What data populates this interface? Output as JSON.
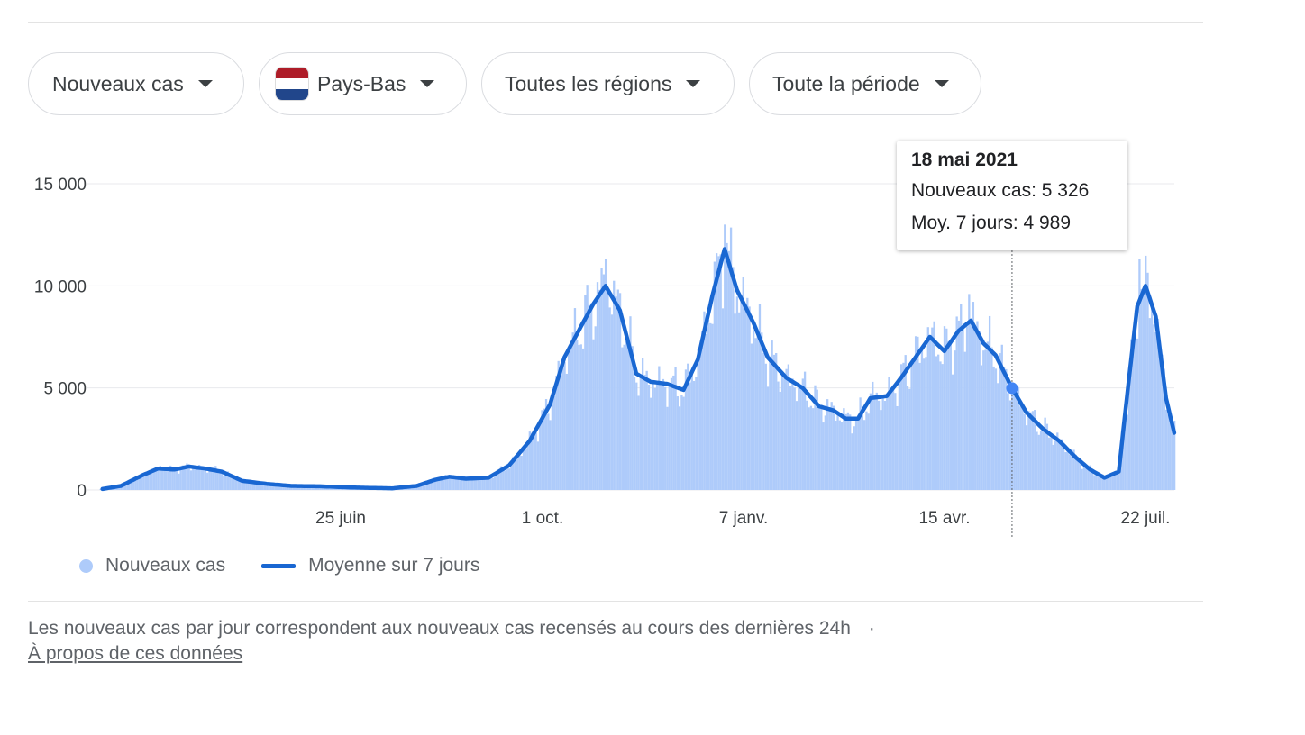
{
  "filters": {
    "metric": "Nouveaux cas",
    "country": "Pays-Bas",
    "region": "Toutes les régions",
    "period": "Toute la période"
  },
  "flag_colors": [
    "#ae1c28",
    "#ffffff",
    "#21468b"
  ],
  "colors": {
    "bars": "#aecbfa",
    "line": "#1967d2",
    "grid": "#e8eaed"
  },
  "tooltip": {
    "date": "18 mai 2021",
    "new_cases": "Nouveaux cas: 5 326",
    "avg": "Moy. 7 jours: 4 989"
  },
  "legend": {
    "bars": "Nouveaux cas",
    "line": "Moyenne sur 7 jours"
  },
  "footer": {
    "note": "Les nouveaux cas par jour correspondent aux nouveaux cas recensés au cours des dernières 24h",
    "separator": "·",
    "about_link": "À propos de ces données"
  },
  "chart_data": {
    "type": "bar",
    "y_ticks": [
      "15 000",
      "10 000",
      "5 000",
      "0"
    ],
    "y_tick_values": [
      15000,
      10000,
      5000,
      0
    ],
    "ylim": [
      0,
      15000
    ],
    "x_tick_labels": [
      "25 juin",
      "1 oct.",
      "7 janv.",
      "15 avr.",
      "22 juil."
    ],
    "x_tick_dates": [
      "2020-06-25",
      "2020-10-01",
      "2021-01-07",
      "2021-04-15",
      "2021-07-22"
    ],
    "xlim": [
      "2020-03-01",
      "2021-08-05"
    ],
    "grid": true,
    "legend_position": "bottom-left",
    "highlight": {
      "date": "2021-05-18",
      "new_cases": 5326,
      "avg": 4989
    },
    "series": [
      {
        "name": "Moyenne sur 7 jours",
        "kind": "line",
        "points": [
          [
            "2020-03-01",
            50
          ],
          [
            "2020-03-10",
            200
          ],
          [
            "2020-03-20",
            700
          ],
          [
            "2020-03-28",
            1050
          ],
          [
            "2020-04-05",
            1000
          ],
          [
            "2020-04-12",
            1150
          ],
          [
            "2020-04-20",
            1050
          ],
          [
            "2020-04-28",
            900
          ],
          [
            "2020-05-08",
            450
          ],
          [
            "2020-05-20",
            300
          ],
          [
            "2020-06-01",
            200
          ],
          [
            "2020-06-15",
            180
          ],
          [
            "2020-07-01",
            120
          ],
          [
            "2020-07-20",
            80
          ],
          [
            "2020-08-01",
            200
          ],
          [
            "2020-08-10",
            500
          ],
          [
            "2020-08-17",
            650
          ],
          [
            "2020-08-25",
            550
          ],
          [
            "2020-09-05",
            600
          ],
          [
            "2020-09-15",
            1200
          ],
          [
            "2020-09-25",
            2400
          ],
          [
            "2020-10-05",
            4200
          ],
          [
            "2020-10-12",
            6500
          ],
          [
            "2020-10-20",
            8000
          ],
          [
            "2020-10-26",
            9100
          ],
          [
            "2020-11-01",
            10000
          ],
          [
            "2020-11-08",
            8800
          ],
          [
            "2020-11-16",
            5700
          ],
          [
            "2020-11-23",
            5300
          ],
          [
            "2020-12-01",
            5200
          ],
          [
            "2020-12-09",
            4900
          ],
          [
            "2020-12-16",
            6400
          ],
          [
            "2020-12-23",
            9500
          ],
          [
            "2020-12-29",
            11800
          ],
          [
            "2021-01-04",
            9800
          ],
          [
            "2021-01-12",
            8200
          ],
          [
            "2021-01-19",
            6500
          ],
          [
            "2021-01-28",
            5500
          ],
          [
            "2021-02-05",
            5000
          ],
          [
            "2021-02-13",
            4100
          ],
          [
            "2021-02-20",
            3900
          ],
          [
            "2021-02-26",
            3500
          ],
          [
            "2021-03-04",
            3500
          ],
          [
            "2021-03-10",
            4500
          ],
          [
            "2021-03-18",
            4600
          ],
          [
            "2021-03-25",
            5500
          ],
          [
            "2021-04-01",
            6500
          ],
          [
            "2021-04-08",
            7500
          ],
          [
            "2021-04-15",
            6800
          ],
          [
            "2021-04-22",
            7800
          ],
          [
            "2021-04-28",
            8300
          ],
          [
            "2021-05-04",
            7200
          ],
          [
            "2021-05-10",
            6600
          ],
          [
            "2021-05-18",
            4989
          ],
          [
            "2021-05-25",
            3800
          ],
          [
            "2021-06-02",
            3000
          ],
          [
            "2021-06-10",
            2400
          ],
          [
            "2021-06-18",
            1600
          ],
          [
            "2021-06-25",
            1000
          ],
          [
            "2021-07-02",
            600
          ],
          [
            "2021-07-09",
            900
          ],
          [
            "2021-07-14",
            5500
          ],
          [
            "2021-07-18",
            9000
          ],
          [
            "2021-07-22",
            10000
          ],
          [
            "2021-07-27",
            8500
          ],
          [
            "2021-08-01",
            4500
          ],
          [
            "2021-08-05",
            2800
          ]
        ]
      },
      {
        "name": "Nouveaux cas",
        "kind": "bar",
        "approx_daily_from_avg": true,
        "notable_peaks": [
          [
            "2020-11-01",
            11300
          ],
          [
            "2020-12-29",
            13000
          ],
          [
            "2021-04-27",
            9600
          ],
          [
            "2021-07-19",
            11300
          ],
          [
            "2021-08-05",
            3400
          ]
        ]
      }
    ]
  }
}
